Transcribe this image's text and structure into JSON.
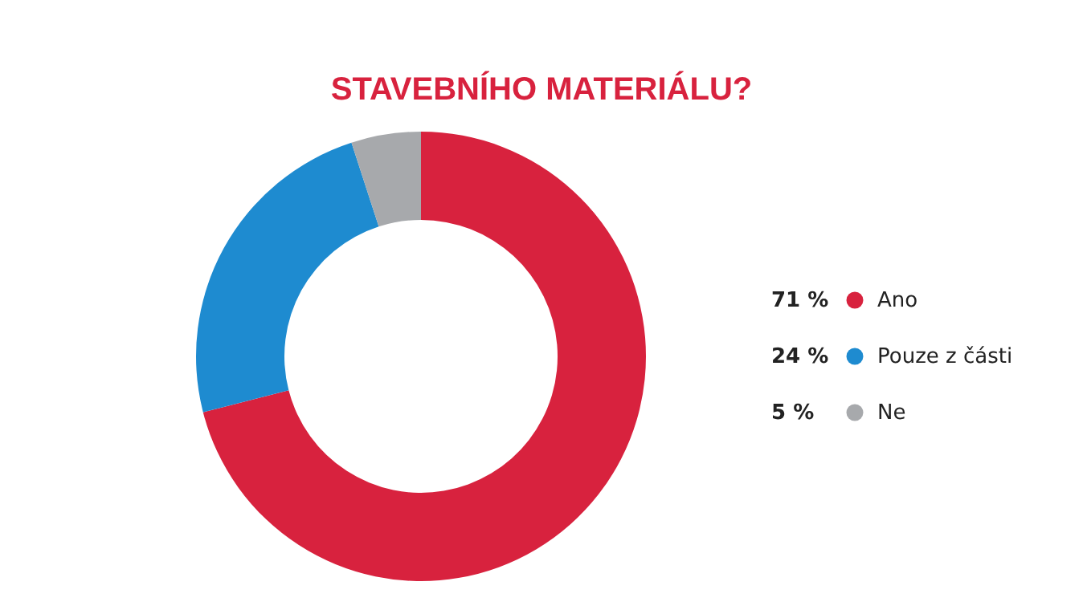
{
  "chart_data": {
    "type": "donut",
    "title": "STAVEBNÍHO MATERIÁLU?",
    "categories": [
      "Ano",
      "Pouze z části",
      "Ne"
    ],
    "values": [
      71,
      24,
      5
    ],
    "colors": [
      "#d8223e",
      "#1e8bd0",
      "#a7a9ac"
    ],
    "value_labels": [
      "71 %",
      "24 %",
      "5 %"
    ],
    "legend": "right"
  }
}
